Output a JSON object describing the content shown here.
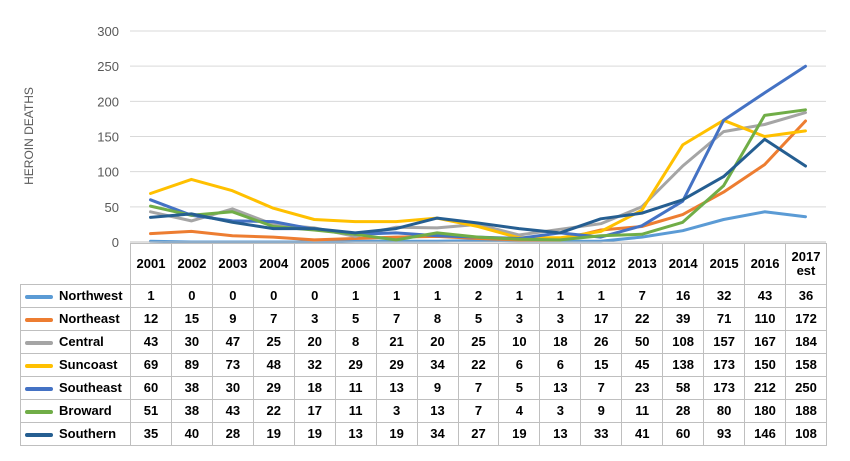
{
  "chart_data": {
    "type": "line",
    "title": "",
    "xlabel": "",
    "ylabel": "HEROIN DEATHS",
    "ylim": [
      0,
      300
    ],
    "yticks": [
      0,
      50,
      100,
      150,
      200,
      250,
      300
    ],
    "ytick_labels": [
      "0",
      "50",
      "100",
      "150",
      "200",
      "250",
      "300"
    ],
    "grid": true,
    "legend": "data-table-below",
    "categories": [
      "2001",
      "2002",
      "2003",
      "2004",
      "2005",
      "2006",
      "2007",
      "2008",
      "2009",
      "2010",
      "2011",
      "2012",
      "2013",
      "2014",
      "2015",
      "2016",
      "2017 est"
    ],
    "series": [
      {
        "name": "Northwest",
        "color": "#5b9bd5",
        "values": [
          1,
          0,
          0,
          0,
          0,
          1,
          1,
          1,
          2,
          1,
          1,
          1,
          7,
          16,
          32,
          43,
          36
        ]
      },
      {
        "name": "Northeast",
        "color": "#ed7d31",
        "values": [
          12,
          15,
          9,
          7,
          3,
          5,
          7,
          8,
          5,
          3,
          3,
          17,
          22,
          39,
          71,
          110,
          172
        ]
      },
      {
        "name": "Central",
        "color": "#a5a5a5",
        "values": [
          43,
          30,
          47,
          25,
          20,
          8,
          21,
          20,
          25,
          10,
          18,
          26,
          50,
          108,
          157,
          167,
          184
        ]
      },
      {
        "name": "Suncoast",
        "color": "#ffc000",
        "values": [
          69,
          89,
          73,
          48,
          32,
          29,
          29,
          34,
          22,
          6,
          6,
          15,
          45,
          138,
          173,
          150,
          158
        ]
      },
      {
        "name": "Southeast",
        "color": "#4472c4",
        "values": [
          60,
          38,
          30,
          29,
          18,
          11,
          13,
          9,
          7,
          5,
          13,
          7,
          23,
          58,
          173,
          212,
          250
        ]
      },
      {
        "name": "Broward",
        "color": "#70ad47",
        "values": [
          51,
          38,
          43,
          22,
          17,
          11,
          3,
          13,
          7,
          4,
          3,
          9,
          11,
          28,
          80,
          180,
          188
        ]
      },
      {
        "name": "Southern",
        "color": "#255e91",
        "values": [
          35,
          40,
          28,
          19,
          19,
          13,
          19,
          34,
          27,
          19,
          13,
          33,
          41,
          60,
          93,
          146,
          108
        ]
      }
    ]
  }
}
